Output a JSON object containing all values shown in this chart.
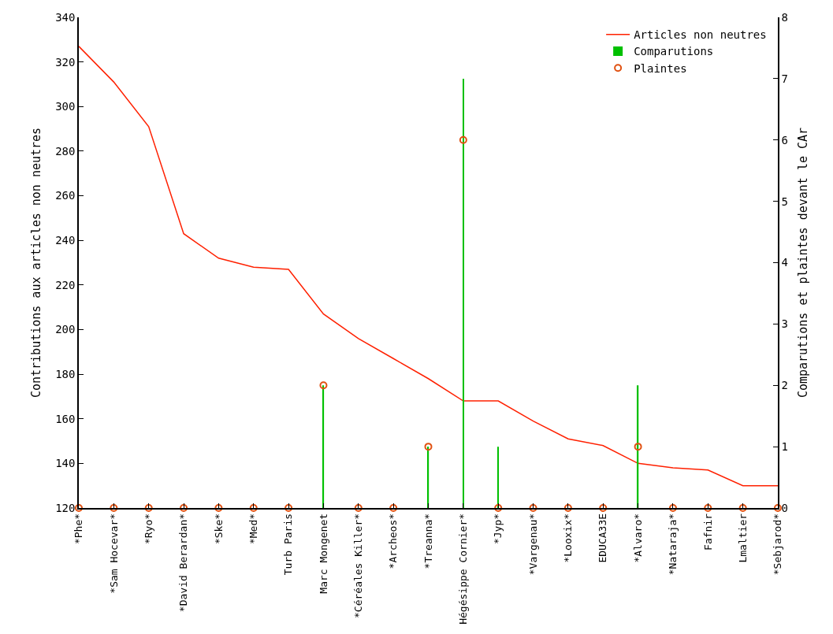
{
  "chart_data": {
    "type": "line",
    "ylabel": "Contributions aux articles non neutres",
    "y2label": "Comparutions et plaintes devant le CAr",
    "categories": [
      "*Phe*",
      "*Sam Hocevar*",
      "*Ryo*",
      "*David Berardan*",
      "*Ske*",
      "*Med*",
      "Turb Paris",
      "Marc Mongenet",
      "*Céréales Killer*",
      "*Archeos*",
      "*Treanna*",
      "Hégésippe Cornier*",
      "*Jyp*",
      "*Vargenau*",
      "*Looxix*",
      "EDUCA33E",
      "*Alvaro*",
      "*Nataraja*",
      "Fafnir",
      "Lmaltier",
      "*Sebjarod*"
    ],
    "series": [
      {
        "name": "Articles non neutres",
        "color": "#ff2000",
        "values": [
          327,
          311,
          291,
          243,
          232,
          228,
          227,
          207,
          196,
          187,
          178,
          168,
          168,
          159,
          151,
          148,
          140,
          138,
          137,
          130,
          130
        ]
      },
      {
        "name": "Comparutions",
        "type": "bar",
        "axis": "y2",
        "color": "#00c000",
        "values": [
          0,
          0,
          0,
          0,
          0,
          0,
          0,
          2,
          0,
          0,
          1,
          7,
          1,
          0,
          0,
          0,
          2,
          0,
          0,
          0,
          0
        ]
      },
      {
        "name": "Plaintes",
        "type": "scatter",
        "axis": "y2",
        "color": "#e05010",
        "marker": "circle",
        "values": [
          0,
          0,
          0,
          0,
          0,
          0,
          0,
          2,
          0,
          0,
          1,
          6,
          0,
          0,
          0,
          0,
          1,
          0,
          0,
          0,
          0
        ]
      }
    ],
    "ylim": [
      120,
      340
    ],
    "yticks": [
      120,
      140,
      160,
      180,
      200,
      220,
      240,
      260,
      280,
      300,
      320,
      340
    ],
    "y2lim": [
      0,
      8
    ],
    "y2ticks": [
      0,
      1,
      2,
      3,
      4,
      5,
      6,
      7,
      8
    ],
    "legend": "top right"
  }
}
